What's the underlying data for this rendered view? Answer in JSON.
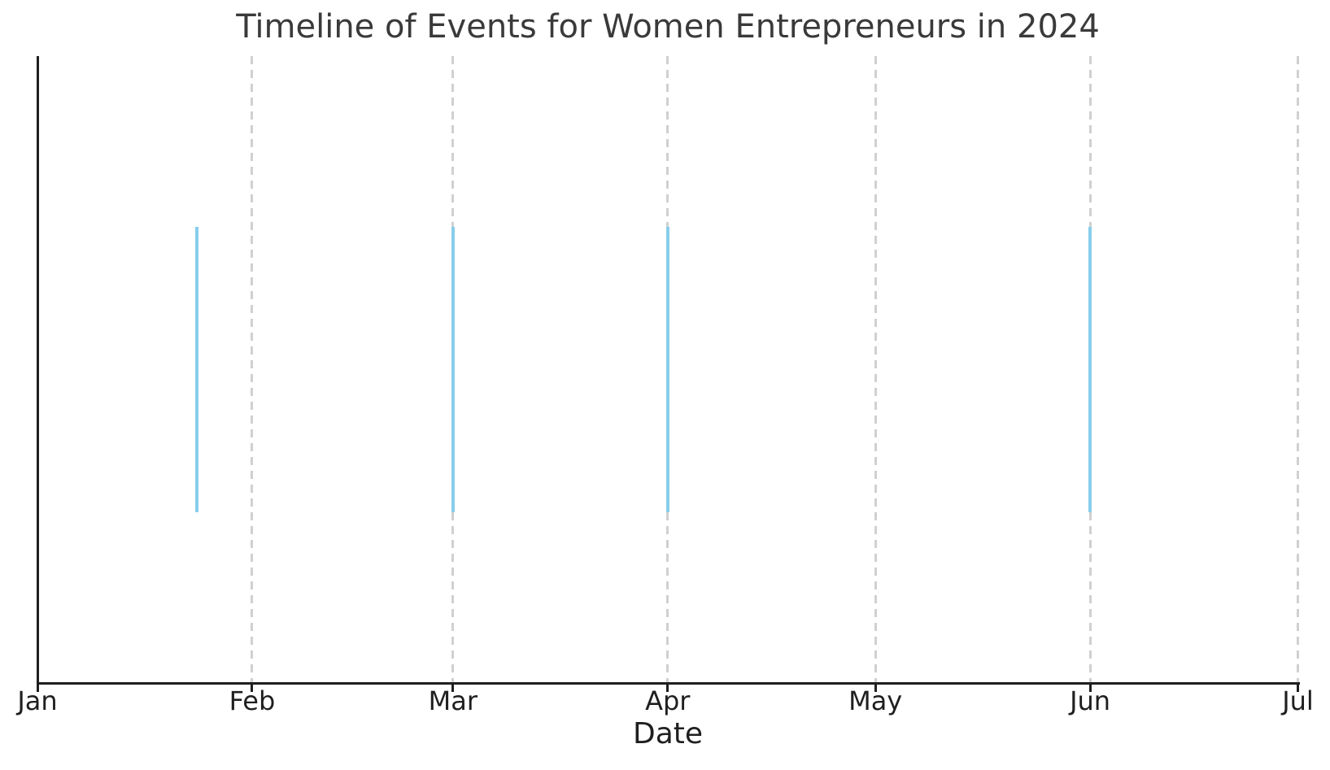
{
  "chart_data": {
    "type": "line",
    "subtype": "event-timeline-vertical-lines",
    "title": "Timeline of Events for Women Entrepreneurs in 2024",
    "xlabel": "Date",
    "ylabel": "",
    "legend": "none",
    "x_axis": {
      "unit": "date",
      "range_start": "2024-01-01",
      "range_end": "2024-07-01",
      "total_days": 182,
      "ticks": [
        {
          "label": "Jan",
          "day_offset": 0
        },
        {
          "label": "Feb",
          "day_offset": 31
        },
        {
          "label": "Mar",
          "day_offset": 60
        },
        {
          "label": "Apr",
          "day_offset": 91
        },
        {
          "label": "May",
          "day_offset": 121
        },
        {
          "label": "Jun",
          "day_offset": 152
        },
        {
          "label": "Jul",
          "day_offset": 182
        }
      ],
      "gridlines": {
        "style": "dashed",
        "at_day_offsets": [
          31,
          60,
          91,
          121,
          152,
          182
        ]
      }
    },
    "y_axis": {
      "tick_labels_visible": false,
      "ylim": [
        -0.6,
        1.6
      ]
    },
    "events": [
      {
        "date": "2024-01-24",
        "day_offset": 23,
        "ymin": 0,
        "ymax": 1
      },
      {
        "date": "2024-03-01",
        "day_offset": 60,
        "ymin": 0,
        "ymax": 1
      },
      {
        "date": "2024-04-01",
        "day_offset": 91,
        "ymin": 0,
        "ymax": 1
      },
      {
        "date": "2024-06-01",
        "day_offset": 152,
        "ymin": 0,
        "ymax": 1
      }
    ],
    "colors": {
      "event_line": "#87CEEB",
      "grid": "#d0d0d0",
      "axis": "#1f1f1f",
      "tick_label_text": "#1f1f1f",
      "title_text": "#3a3a3a",
      "background": "#ffffff"
    }
  }
}
